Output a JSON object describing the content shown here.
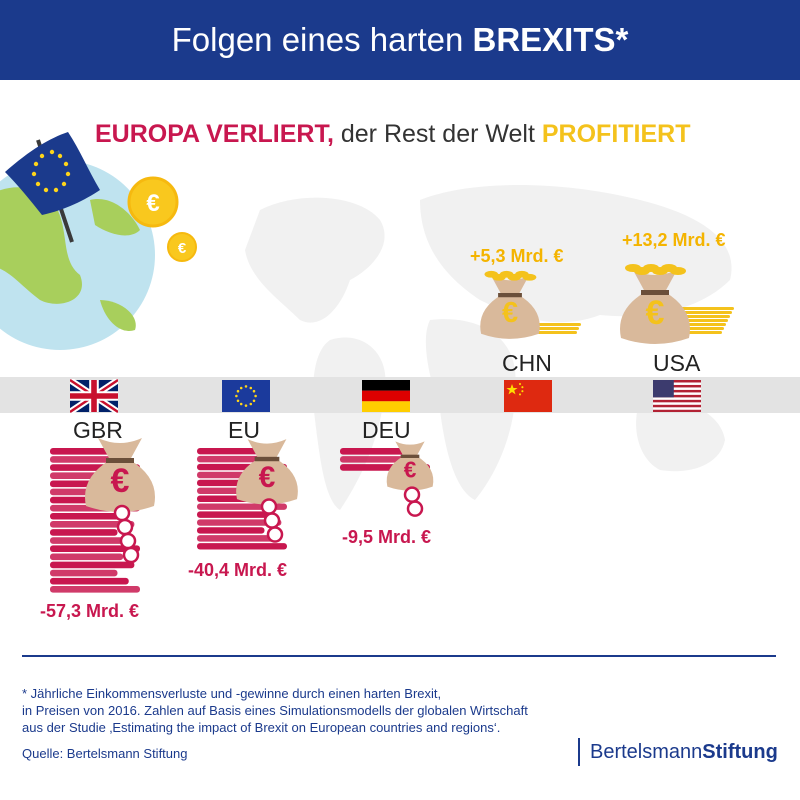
{
  "header": {
    "title_prefix": "Folgen eines harten ",
    "title_bold": "BREXITS*"
  },
  "subtitle": {
    "part1": "EUROPA VERLIERT,",
    "part2": " der Rest der Welt ",
    "part3": "PROFITIERT"
  },
  "colors": {
    "navy": "#1b3a8c",
    "loss": "#c8174f",
    "gain": "#f4c21c",
    "band": "#e3e3e3"
  },
  "chart_data": {
    "type": "bar",
    "title": "EUROPA VERLIERT, der Rest der Welt PROFITIERT",
    "categories": [
      "GBR",
      "EU",
      "DEU",
      "CHN",
      "USA"
    ],
    "values": [
      -57.3,
      -40.4,
      -9.5,
      5.3,
      13.2
    ],
    "unit": "Mrd. €",
    "labels": [
      "-57,3 Mrd. €",
      "-40,4 Mrd. €",
      "-9,5 Mrd. €",
      "+5,3 Mrd. €",
      "+13,2 Mrd. €"
    ]
  },
  "footnote": {
    "line1": "* Jährliche Einkommensverluste und -gewinne durch einen harten Brexit,",
    "line2": "in Preisen von 2016. Zahlen auf Basis eines Simulationsmodells der globalen Wirtschaft",
    "line3": "aus der Studie ‚Estimating the impact of Brexit on European countries and regions‘."
  },
  "source": "Quelle: Bertelsmann Stiftung",
  "logo": {
    "light": "Bertelsmann",
    "bold": "Stiftung"
  },
  "icons": [
    "eu-flag-icon",
    "globe-icon",
    "euro-coin-icon",
    "money-bag-icon",
    "uk-flag-icon",
    "germany-flag-icon",
    "china-flag-icon",
    "usa-flag-icon"
  ]
}
